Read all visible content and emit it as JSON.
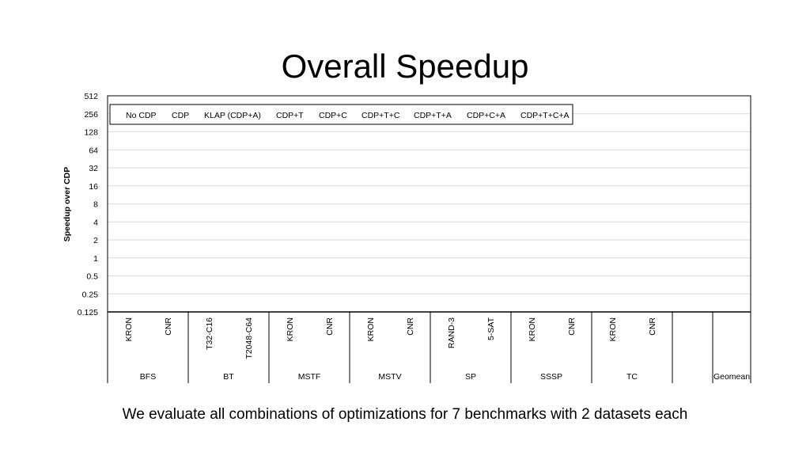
{
  "slide": {
    "title": "Overall Speedup",
    "caption": "We evaluate all combinations of optimizations for 7 benchmarks with 2 datasets each"
  },
  "chart_data": {
    "type": "bar",
    "ylabel": "Speedup over CDP",
    "y_scale": "log2",
    "ylim": [
      0.125,
      512
    ],
    "y_ticks": [
      "512",
      "256",
      "128",
      "64",
      "32",
      "16",
      "8",
      "4",
      "2",
      "1",
      "0.5",
      "0.25",
      "0.125"
    ],
    "grid": true,
    "legend_position": "top-left",
    "series": [
      {
        "name": "No CDP",
        "values": []
      },
      {
        "name": "CDP",
        "values": []
      },
      {
        "name": "KLAP (CDP+A)",
        "values": []
      },
      {
        "name": "CDP+T",
        "values": []
      },
      {
        "name": "CDP+C",
        "values": []
      },
      {
        "name": "CDP+T+C",
        "values": []
      },
      {
        "name": "CDP+T+A",
        "values": []
      },
      {
        "name": "CDP+C+A",
        "values": []
      },
      {
        "name": "CDP+T+C+A",
        "values": []
      }
    ],
    "groups": [
      {
        "name": "BFS",
        "categories": [
          "KRON",
          "CNR"
        ]
      },
      {
        "name": "BT",
        "categories": [
          "T32-C16",
          "T2048-C64"
        ]
      },
      {
        "name": "MSTF",
        "categories": [
          "KRON",
          "CNR"
        ]
      },
      {
        "name": "MSTV",
        "categories": [
          "KRON",
          "CNR"
        ]
      },
      {
        "name": "SP",
        "categories": [
          "RAND-3",
          "5-SAT"
        ]
      },
      {
        "name": "SSSP",
        "categories": [
          "KRON",
          "CNR"
        ]
      },
      {
        "name": "TC",
        "categories": [
          "KRON",
          "CNR"
        ]
      },
      {
        "name": "Geomean",
        "categories": []
      }
    ]
  }
}
